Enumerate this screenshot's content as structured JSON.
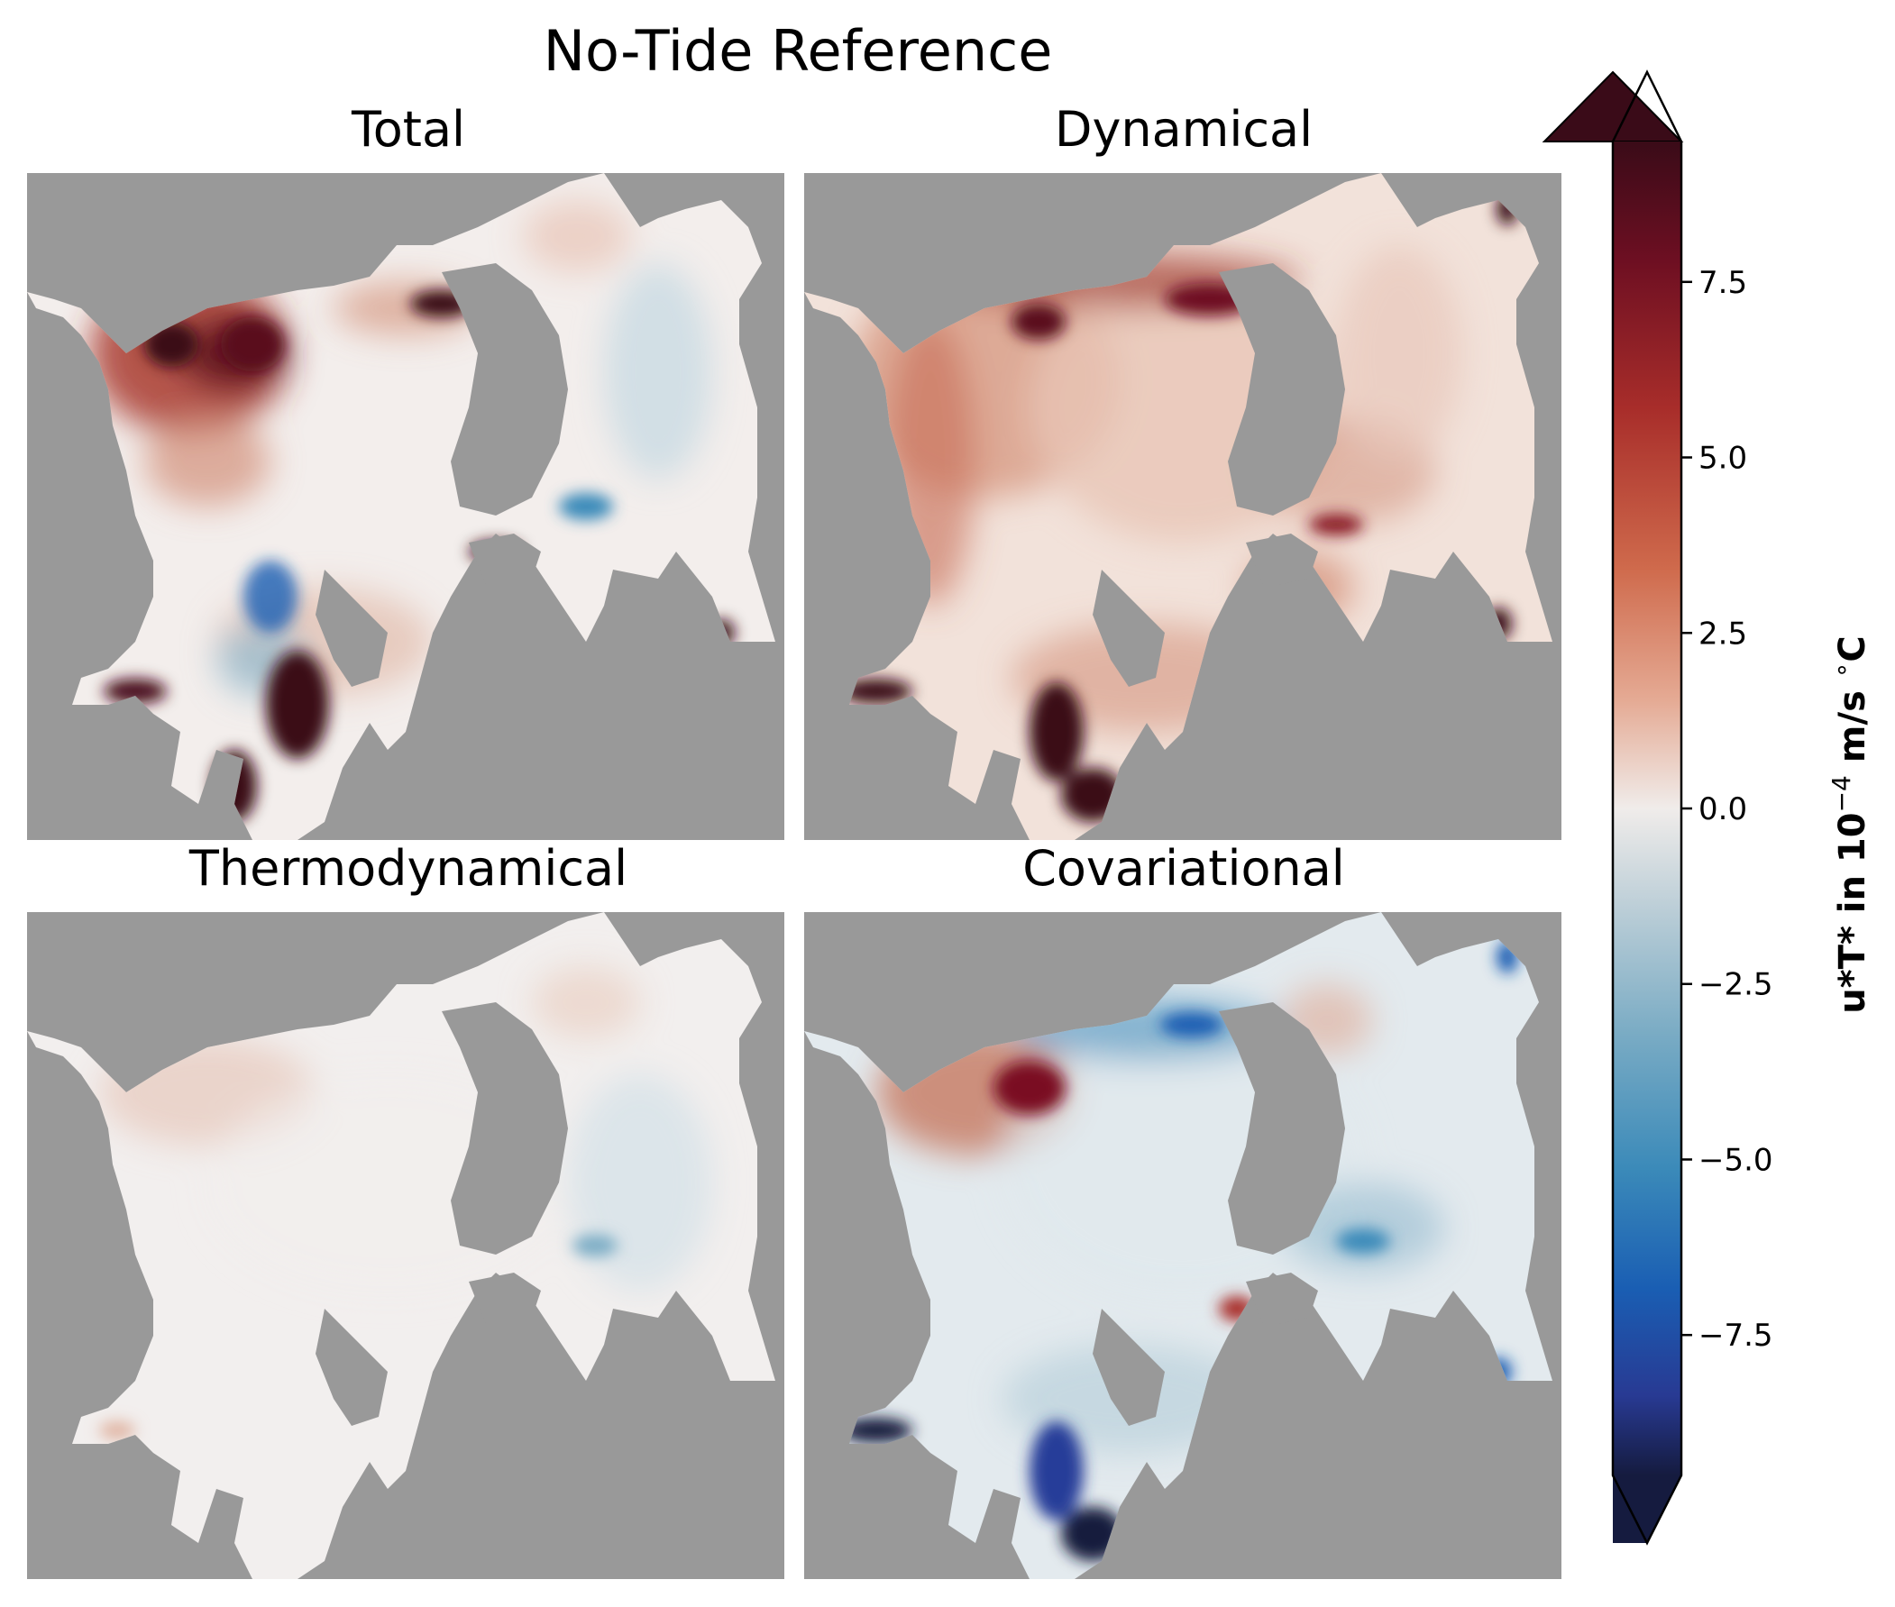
{
  "chart_data": {
    "type": "heatmap",
    "title": "No-Tide Reference",
    "panels": [
      {
        "title": "Total",
        "character": "strong positive near northern/western coasts and inlets, negative patches along eastern channel"
      },
      {
        "title": "Dynamical",
        "character": "broadly positive across the domain, strongest in southern inlets and along northern coast"
      },
      {
        "title": "Thermodynamical",
        "character": "weak, near zero with faint positive in the northwest and faint negative in the east"
      },
      {
        "title": "Covariational",
        "character": "mostly negative across the domain with a positive patch in the northwest"
      }
    ],
    "colorbar": {
      "label_main": "u*T* in 10",
      "label_exp": "−4",
      "label_unit": " m/s ",
      "label_deg": "∘",
      "label_c": "C",
      "ticks": [
        7.5,
        5.0,
        2.5,
        0.0,
        -2.5,
        -5.0,
        -7.5
      ],
      "tick_labels": [
        "7.5",
        "5.0",
        "2.5",
        "0.0",
        "−2.5",
        "−5.0",
        "−7.5"
      ],
      "range": [
        -9.5,
        9.5
      ],
      "extend": "both",
      "colormap": "balance (diverging blue-white-red)",
      "colors": [
        "#3a0b18",
        "#7a1024",
        "#b23a2a",
        "#d98a6c",
        "#f0d8cc",
        "#efefef",
        "#c5d5dc",
        "#7fb0c6",
        "#3b89b8",
        "#1a5fb4",
        "#263c99",
        "#141a3d"
      ]
    },
    "land_color": "#999999"
  }
}
